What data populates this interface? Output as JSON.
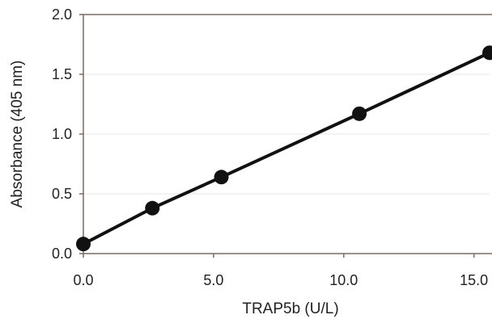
{
  "chart_data": {
    "type": "line",
    "title": "",
    "xlabel": "TRAP5b (U/L)",
    "ylabel": "Absorbance (405 nm)",
    "xlim": [
      0,
      15.6
    ],
    "ylim": [
      0,
      2.0
    ],
    "x_ticks": [
      "0.0",
      "5.0",
      "10.0",
      "15.0"
    ],
    "y_ticks": [
      "0.0",
      "0.5",
      "1.0",
      "1.5",
      "2.0"
    ],
    "grid": true,
    "legend": "none",
    "series": [
      {
        "x": [
          0.0,
          2.65,
          5.3,
          10.6,
          15.6
        ],
        "y": [
          0.08,
          0.38,
          0.64,
          1.17,
          1.68
        ]
      }
    ],
    "colors": {
      "line": "#111111",
      "marker": "#111111",
      "axis": "#7a6a64",
      "grid": "#e6e6e6"
    }
  }
}
